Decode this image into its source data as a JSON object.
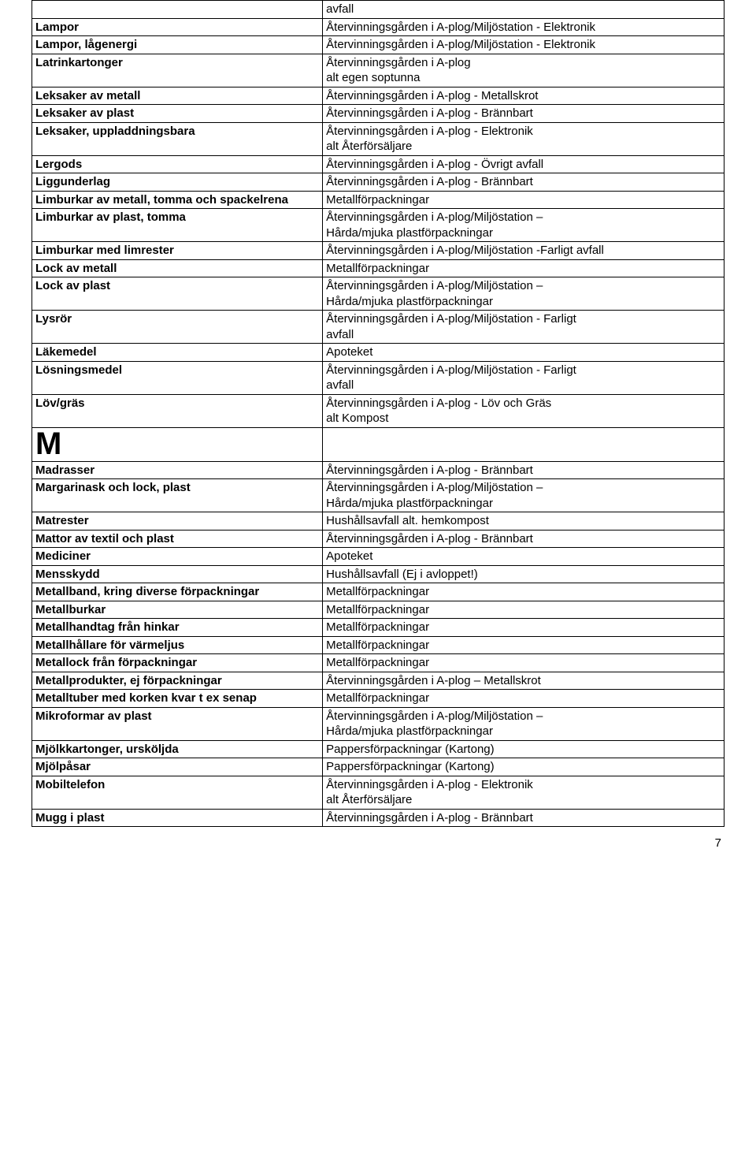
{
  "rows": [
    {
      "left": "",
      "right": "avfall",
      "leftBold": true
    },
    {
      "left": "Lampor",
      "right": "Återvinningsgården i A-plog/Miljöstation - Elektronik"
    },
    {
      "left": "Lampor, lågenergi",
      "right": "Återvinningsgården i A-plog/Miljöstation - Elektronik"
    },
    {
      "left": "Latrinkartonger",
      "right": "Återvinningsgården i A-plog\nalt egen soptunna"
    },
    {
      "left": "Leksaker av metall",
      "right": "Återvinningsgården i A-plog - Metallskrot"
    },
    {
      "left": "Leksaker av plast",
      "right": "Återvinningsgården i A-plog - Brännbart"
    },
    {
      "left": "Leksaker, uppladdningsbara",
      "right": "Återvinningsgården i A-plog - Elektronik\nalt Återförsäljare"
    },
    {
      "left": "Lergods",
      "right": "Återvinningsgården i A-plog - Övrigt avfall"
    },
    {
      "left": "Liggunderlag",
      "right": "Återvinningsgården i A-plog - Brännbart"
    },
    {
      "left": "Limburkar av metall, tomma och spackelrena",
      "right": "Metallförpackningar"
    },
    {
      "left": "Limburkar av plast, tomma",
      "right": "Återvinningsgården i A-plog/Miljöstation –\nHårda/mjuka plastförpackningar"
    },
    {
      "left": "Limburkar med limrester",
      "right": "Återvinningsgården i A-plog/Miljöstation -Farligt avfall"
    },
    {
      "left": "Lock av metall",
      "right": "Metallförpackningar"
    },
    {
      "left": "Lock av plast",
      "right": "Återvinningsgården i A-plog/Miljöstation –\nHårda/mjuka plastförpackningar"
    },
    {
      "left": "Lysrör",
      "right": "Återvinningsgården i A-plog/Miljöstation - Farligt\navfall"
    },
    {
      "left": "Läkemedel",
      "right": "Apoteket"
    },
    {
      "left": "Lösningsmedel",
      "right": "Återvinningsgården i A-plog/Miljöstation - Farligt\navfall"
    },
    {
      "left": "Löv/gräs",
      "right": "Återvinningsgården i A-plog - Löv och Gräs\nalt Kompost"
    },
    {
      "left": "M",
      "right": "",
      "letter": true
    },
    {
      "left": "Madrasser",
      "right": "Återvinningsgården i A-plog - Brännbart"
    },
    {
      "left": "Margarinask och lock, plast",
      "right": "Återvinningsgården i A-plog/Miljöstation –\nHårda/mjuka plastförpackningar"
    },
    {
      "left": "Matrester",
      "right": "Hushållsavfall alt. hemkompost"
    },
    {
      "left": "Mattor av textil och plast",
      "right": "Återvinningsgården i A-plog - Brännbart"
    },
    {
      "left": "Mediciner",
      "right": "Apoteket"
    },
    {
      "left": "Mensskydd",
      "right": "Hushållsavfall (Ej i avloppet!)"
    },
    {
      "left": "Metallband, kring diverse förpackningar",
      "right": "Metallförpackningar"
    },
    {
      "left": "Metallburkar",
      "right": "Metallförpackningar"
    },
    {
      "left": "Metallhandtag från hinkar",
      "right": "Metallförpackningar"
    },
    {
      "left": "Metallhållare för värmeljus",
      "right": "Metallförpackningar"
    },
    {
      "left": "Metallock från förpackningar",
      "right": "Metallförpackningar"
    },
    {
      "left": "Metallprodukter, ej förpackningar",
      "right": "Återvinningsgården i A-plog – Metallskrot"
    },
    {
      "left": "Metalltuber med korken kvar t ex senap",
      "right": "Metallförpackningar"
    },
    {
      "left": "Mikroformar av plast",
      "right": "Återvinningsgården i A-plog/Miljöstation –\nHårda/mjuka plastförpackningar"
    },
    {
      "left": "Mjölkkartonger, ursköljda",
      "right": "Pappersförpackningar (Kartong)"
    },
    {
      "left": "Mjölpåsar",
      "right": "Pappersförpackningar (Kartong)"
    },
    {
      "left": "Mobiltelefon",
      "right": "Återvinningsgården i A-plog - Elektronik\nalt Återförsäljare"
    },
    {
      "left": "Mugg i plast",
      "right": "Återvinningsgården i A-plog - Brännbart"
    }
  ],
  "pageNumber": "7"
}
